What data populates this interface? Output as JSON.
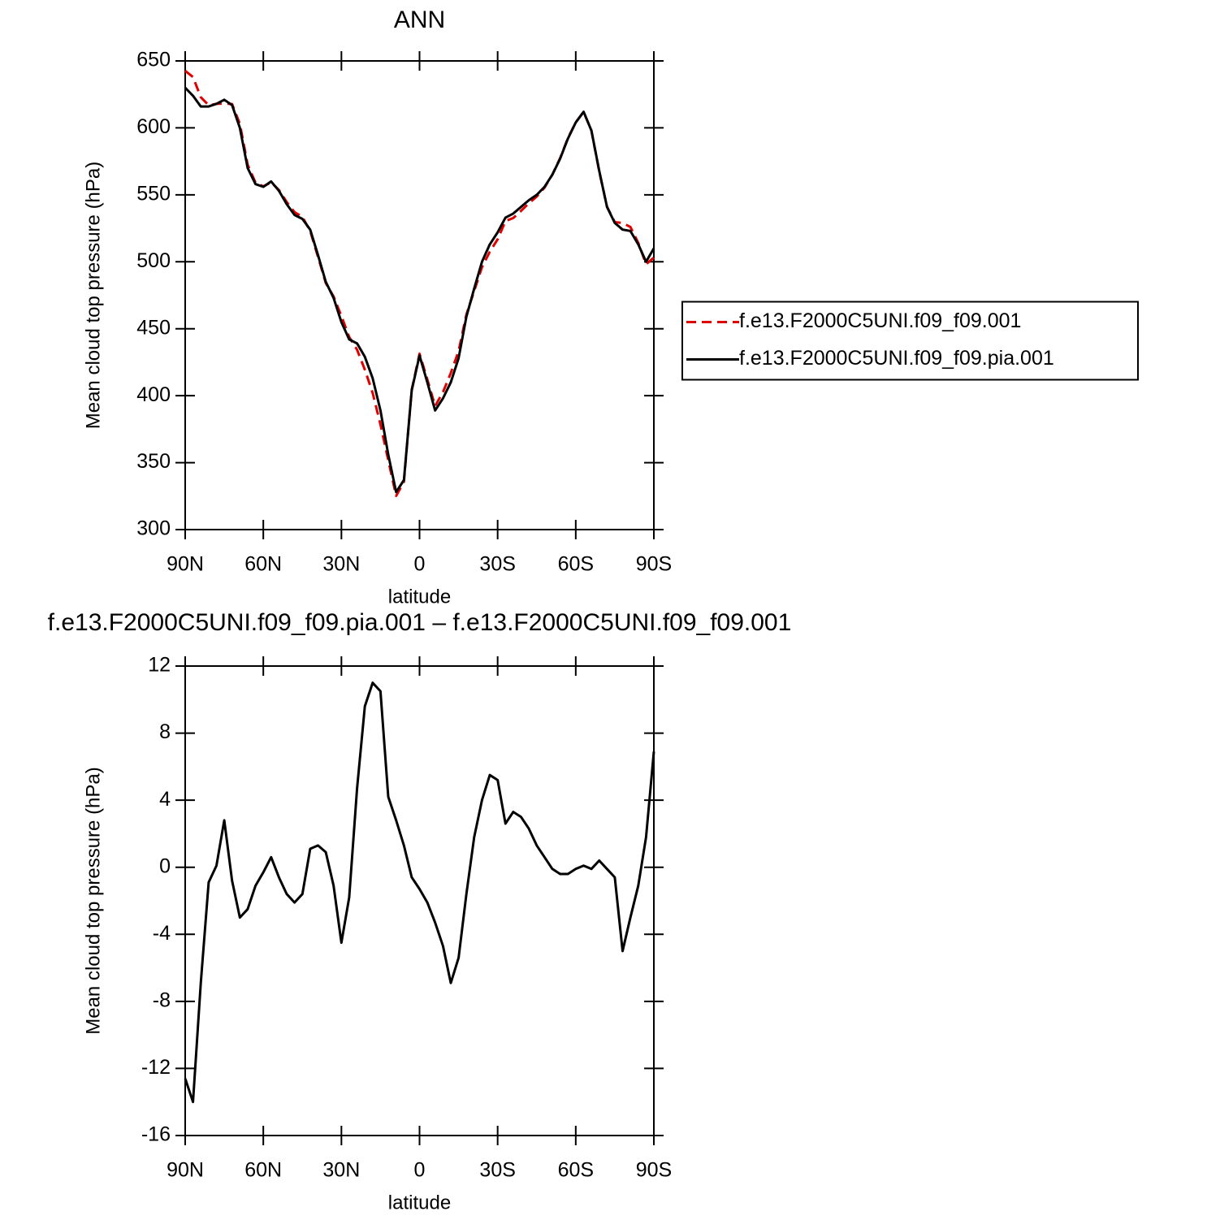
{
  "chart_data": [
    {
      "type": "line",
      "title": "ANN",
      "xlabel": "latitude",
      "ylabel": "Mean cloud top pressure (hPa)",
      "x": [
        90,
        87,
        84,
        81,
        78,
        75,
        72,
        69,
        66,
        63,
        60,
        57,
        54,
        51,
        48,
        45,
        42,
        39,
        36,
        33,
        30,
        27,
        24,
        21,
        18,
        15,
        12,
        9,
        6,
        3,
        0,
        -3,
        -6,
        -9,
        -12,
        -15,
        -18,
        -21,
        -24,
        -27,
        -30,
        -33,
        -36,
        -39,
        -42,
        -45,
        -48,
        -51,
        -54,
        -57,
        -60,
        -63,
        -66,
        -69,
        -72,
        -75,
        -78,
        -81,
        -84,
        -87,
        -90
      ],
      "series": [
        {
          "name": "f.e13.F2000C5UNI.f09_f09.001",
          "color": "#e00000",
          "dashed": true,
          "values": [
            642.6,
            638,
            622.9,
            616.9,
            617.9,
            618.2,
            617.8,
            603,
            572.5,
            559.1,
            556.3,
            559.4,
            553.6,
            544.6,
            537.1,
            533.6,
            522.9,
            503.7,
            484.1,
            474.1,
            459.5,
            443.8,
            434.3,
            419.4,
            402,
            378.5,
            351.8,
            325.2,
            335.7,
            404.6,
            431.3,
            412.1,
            392.3,
            402.7,
            416.9,
            433.4,
            460.6,
            478.2,
            496,
            507.5,
            516.8,
            530.4,
            532.7,
            538,
            543.7,
            548.7,
            555.4,
            565.1,
            577.4,
            592.4,
            604.1,
            611.9,
            598.1,
            567.6,
            541.1,
            529.6,
            529,
            526,
            514.1,
            498.2,
            503.1
          ]
        },
        {
          "name": "f.e13.F2000C5UNI.f09_f09.pia.001",
          "color": "#000000",
          "dashed": false,
          "values": [
            630,
            624,
            616,
            616,
            618,
            621,
            617,
            600,
            570,
            558,
            556,
            560,
            553,
            543,
            535,
            532,
            524,
            505,
            485,
            473,
            455,
            442,
            439,
            429,
            413,
            389,
            356,
            328,
            337,
            404,
            430,
            410,
            389,
            398,
            410,
            428,
            459,
            480,
            500,
            513,
            522,
            533,
            536,
            541,
            546,
            550,
            556,
            565,
            577,
            592,
            604,
            612,
            598,
            568,
            541,
            529,
            524,
            523,
            513,
            500,
            510
          ]
        }
      ],
      "xlim": [
        90,
        -90
      ],
      "xticks": [
        {
          "value": 90,
          "label": "90N"
        },
        {
          "value": 60,
          "label": "60N"
        },
        {
          "value": 30,
          "label": "30N"
        },
        0,
        {
          "value": -30,
          "label": "30S"
        },
        {
          "value": -60,
          "label": "60S"
        },
        {
          "value": -90,
          "label": "90S"
        }
      ],
      "ylim": [
        300,
        650
      ],
      "yticks": [
        300,
        350,
        400,
        450,
        500,
        550,
        600,
        650
      ],
      "legend": "outside-right"
    },
    {
      "type": "line",
      "title": "f.e13.F2000C5UNI.f09_f09.pia.001 – f.e13.F2000C5UNI.f09_f09.001",
      "xlabel": "latitude",
      "ylabel": "Mean cloud top pressure (hPa)",
      "x": [
        90,
        87,
        84,
        81,
        78,
        75,
        72,
        69,
        66,
        63,
        60,
        57,
        54,
        51,
        48,
        45,
        42,
        39,
        36,
        33,
        30,
        27,
        24,
        21,
        18,
        15,
        12,
        9,
        6,
        3,
        0,
        -3,
        -6,
        -9,
        -12,
        -15,
        -18,
        -21,
        -24,
        -27,
        -30,
        -33,
        -36,
        -39,
        -42,
        -45,
        -48,
        -51,
        -54,
        -57,
        -60,
        -63,
        -66,
        -69,
        -72,
        -75,
        -78,
        -81,
        -84,
        -87,
        -90
      ],
      "series": [
        {
          "color": "#000000",
          "dashed": false,
          "values": [
            -12.6,
            -14,
            -6.9,
            -0.9,
            0.1,
            2.8,
            -0.8,
            -3,
            -2.5,
            -1.1,
            -0.3,
            0.6,
            -0.6,
            -1.6,
            -2.1,
            -1.6,
            1.1,
            1.3,
            0.9,
            -1.1,
            -4.5,
            -1.8,
            4.7,
            9.6,
            11,
            10.5,
            4.2,
            2.8,
            1.3,
            -0.6,
            -1.3,
            -2.1,
            -3.3,
            -4.7,
            -6.9,
            -5.4,
            -1.6,
            1.8,
            4,
            5.5,
            5.2,
            2.6,
            3.3,
            3,
            2.3,
            1.3,
            0.6,
            -0.1,
            -0.4,
            -0.4,
            -0.1,
            0.1,
            -0.1,
            0.4,
            -0.1,
            -0.6,
            -5,
            -3,
            -1.1,
            1.8,
            6.9
          ]
        }
      ],
      "xlim": [
        90,
        -90
      ],
      "xticks": [
        {
          "value": 90,
          "label": "90N"
        },
        {
          "value": 60,
          "label": "60N"
        },
        {
          "value": 30,
          "label": "30N"
        },
        0,
        {
          "value": -30,
          "label": "30S"
        },
        {
          "value": -60,
          "label": "60S"
        },
        {
          "value": -90,
          "label": "90S"
        }
      ],
      "ylim": [
        -16,
        12
      ],
      "yticks": [
        -16,
        -12,
        -8,
        -4,
        0,
        4,
        8,
        12
      ]
    }
  ]
}
